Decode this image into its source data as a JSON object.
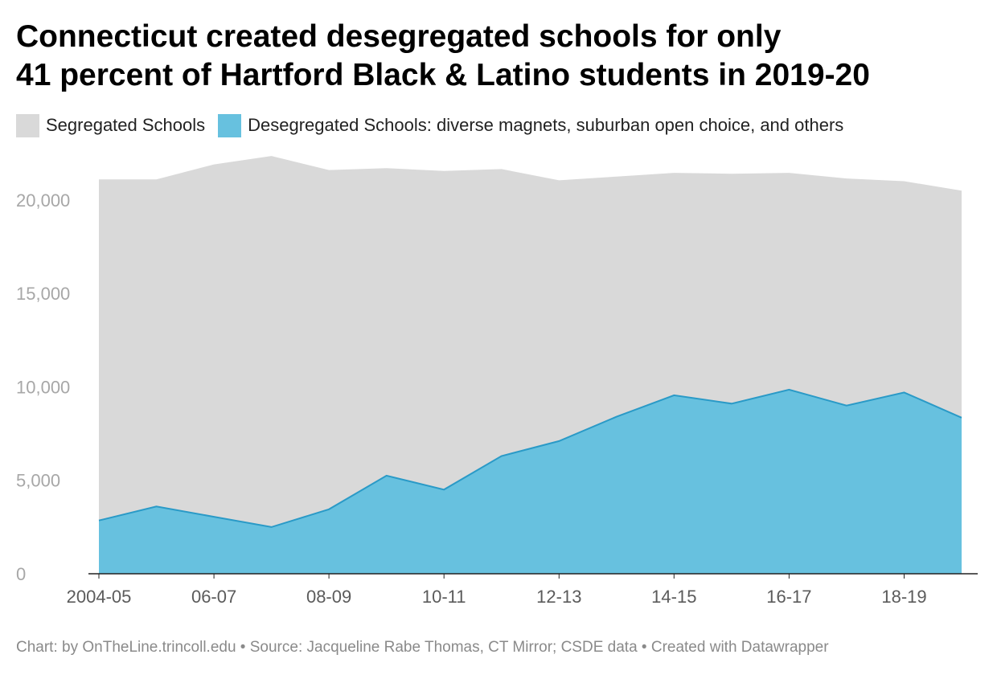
{
  "title_lines": [
    "Connecticut created desegregated schools for only",
    "41 percent of Hartford Black & Latino students in 2019-20"
  ],
  "legend": [
    {
      "label": "Segregated Schools",
      "color": "#d9d9d9"
    },
    {
      "label": "Desegregated Schools: diverse magnets, suburban open choice, and others",
      "color": "#67c1df"
    }
  ],
  "footer": "Chart: by OnTheLine.trincoll.edu • Source: Jacqueline Rabe Thomas, CT Mirror; CSDE data • Created with Datawrapper",
  "chart_data": {
    "type": "area",
    "stacked": true,
    "x": [
      "2004-05",
      "2005-06",
      "2006-07",
      "2007-08",
      "2008-09",
      "2009-10",
      "2010-11",
      "2011-12",
      "2012-13",
      "2013-14",
      "2014-15",
      "2015-16",
      "2016-17",
      "2017-18",
      "2018-19",
      "2019-20"
    ],
    "x_tick_labels": [
      "2004-05",
      "06-07",
      "08-09",
      "10-11",
      "12-13",
      "14-15",
      "16-17",
      "18-19"
    ],
    "x_tick_indices": [
      0,
      2,
      4,
      6,
      8,
      10,
      12,
      14
    ],
    "y_ticks": [
      0,
      5000,
      10000,
      15000,
      20000
    ],
    "y_tick_labels": [
      "0",
      "5,000",
      "10,000",
      "15,000",
      "20,000"
    ],
    "ylim": [
      0,
      22700
    ],
    "series": [
      {
        "name": "Desegregated Schools: diverse magnets, suburban open choice, and others",
        "color": "#67c1df",
        "line_color": "#2a9ac7",
        "values": [
          2850,
          3600,
          3050,
          2500,
          3450,
          5250,
          4500,
          6300,
          7100,
          8400,
          9550,
          9100,
          9850,
          9000,
          9700,
          8350
        ]
      },
      {
        "name": "Segregated Schools",
        "color": "#d9d9d9",
        "values": [
          18250,
          17500,
          18850,
          19850,
          18150,
          16450,
          17050,
          15350,
          13950,
          12850,
          11900,
          12300,
          11600,
          12150,
          11300,
          12150
        ]
      }
    ],
    "grid": false
  }
}
